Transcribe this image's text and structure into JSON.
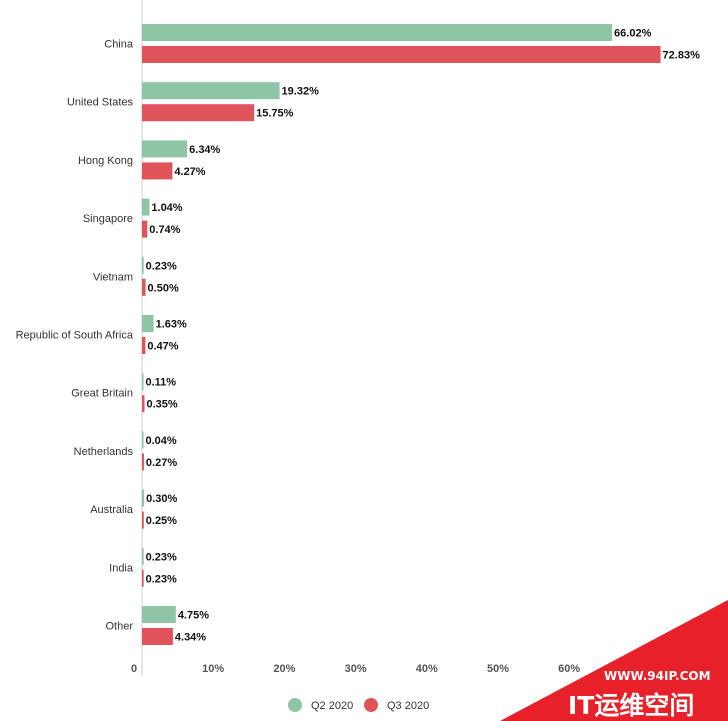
{
  "chart_data": {
    "type": "bar",
    "orientation": "horizontal",
    "categories": [
      "China",
      "United States",
      "Hong Kong",
      "Singapore",
      "Vietnam",
      "Republic of South Africa",
      "Great Britain",
      "Netherlands",
      "Australia",
      "India",
      "Other"
    ],
    "series": [
      {
        "name": "Q2 2020",
        "color": "#8ec6a5",
        "values": [
          66.02,
          19.32,
          6.34,
          1.04,
          0.23,
          1.63,
          0.11,
          0.04,
          0.3,
          0.23,
          4.75
        ],
        "labels": [
          "66.02%",
          "19.32%",
          "6.34%",
          "1.04%",
          "0.23%",
          "1.63%",
          "0.11%",
          "0.04%",
          "0.30%",
          "0.23%",
          "4.75%"
        ]
      },
      {
        "name": "Q3 2020",
        "color": "#e0535b",
        "values": [
          72.83,
          15.75,
          4.27,
          0.74,
          0.5,
          0.47,
          0.35,
          0.27,
          0.25,
          0.23,
          4.34
        ],
        "labels": [
          "72.83%",
          "15.75%",
          "4.27%",
          "0.74%",
          "0.50%",
          "0.47%",
          "0.35%",
          "0.27%",
          "0.25%",
          "0.23%",
          "4.34%"
        ]
      }
    ],
    "x_ticks": [
      0,
      10,
      20,
      30,
      40,
      50,
      60
    ],
    "x_tick_labels": [
      "0",
      "10%",
      "20%",
      "30%",
      "40%",
      "50%",
      "60%"
    ],
    "xlim": [
      0,
      80
    ],
    "grid": false,
    "legend_position": "bottom-center",
    "title": "",
    "xlabel": "",
    "ylabel": ""
  },
  "watermark": {
    "url": "WWW.94IP.COM",
    "name": "IT运维空间",
    "color": "#e8202a"
  }
}
